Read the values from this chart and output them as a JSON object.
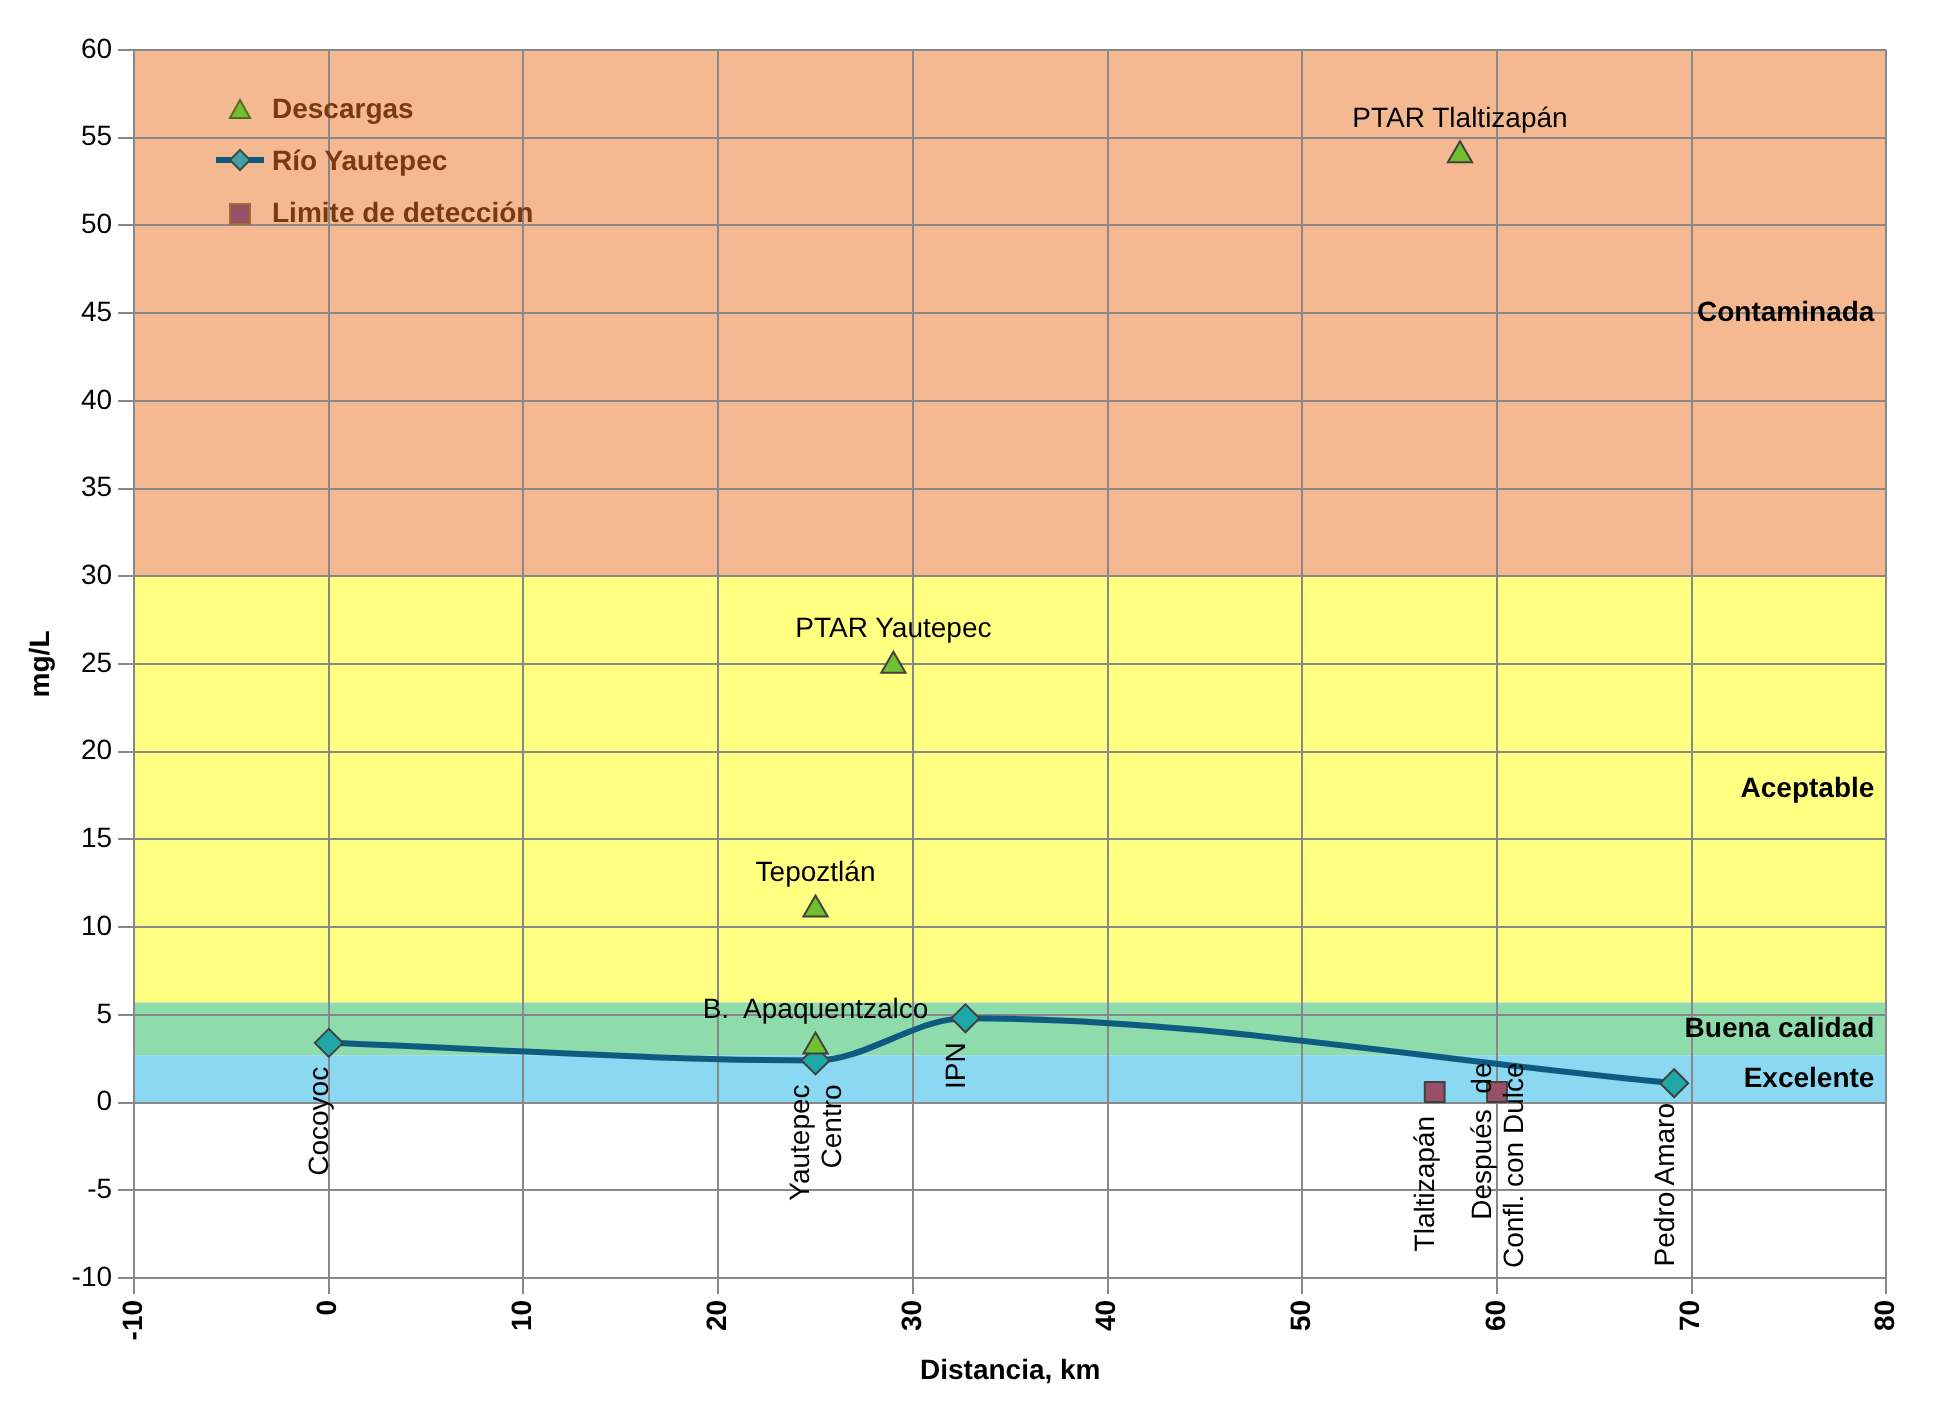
{
  "chart_data": {
    "type": "scatter",
    "xlabel": "Distancia, km",
    "ylabel": "mg/L",
    "xlim": [
      -10,
      80
    ],
    "xticks": [
      -10,
      0,
      10,
      20,
      30,
      40,
      50,
      60,
      70,
      80
    ],
    "ylim": [
      -10,
      60
    ],
    "yticks": [
      -10,
      -5,
      0,
      5,
      10,
      15,
      20,
      25,
      30,
      35,
      40,
      45,
      50,
      55,
      60
    ],
    "grid": true,
    "legend": "top left",
    "series": [
      {
        "name": "Descargas",
        "type": "scatter",
        "marker": "triangle",
        "color": "#70c030",
        "x": [
          25,
          29,
          58.1,
          25
        ],
        "values": [
          11,
          24.9,
          54,
          3.2
        ],
        "value_labels": [
          "Tepoztlán",
          "PTAR Yautepec",
          "PTAR Tlaltizapán",
          "B.  Apaquentzalco"
        ]
      },
      {
        "name": "Río Yautepec",
        "type": "line",
        "marker": "diamond",
        "line_style": "solid",
        "color": "#0e5a80",
        "x": [
          0,
          25,
          32.7,
          69.1
        ],
        "values": [
          3.4,
          2.4,
          4.8,
          1.1
        ],
        "value_labels": [
          "Cocoyoc",
          "Yautepec\nCentro",
          "IPN",
          "Pedro Amaro"
        ]
      },
      {
        "name": "Limite de detección",
        "type": "scatter",
        "marker": "square",
        "color": "#985068",
        "x": [
          56.8,
          60
        ],
        "values": [
          0.6,
          0.6
        ],
        "value_labels": [
          "Tlaltizapán",
          "Después  de\nConfl. con Dulce"
        ]
      }
    ],
    "bands": [
      {
        "axis": "y",
        "from": 30,
        "to": 60,
        "label": "Contaminada",
        "color": "#f4b990"
      },
      {
        "axis": "y",
        "from": 5.7,
        "to": 30,
        "label": "Aceptable",
        "color": "#ffff80"
      },
      {
        "axis": "y",
        "from": 2.7,
        "to": 5.7,
        "label": "Buena calidad",
        "color": "#8edcab"
      },
      {
        "axis": "y",
        "from": 0,
        "to": 2.7,
        "label": "Excelente",
        "color": "#8ad8f2"
      }
    ]
  }
}
